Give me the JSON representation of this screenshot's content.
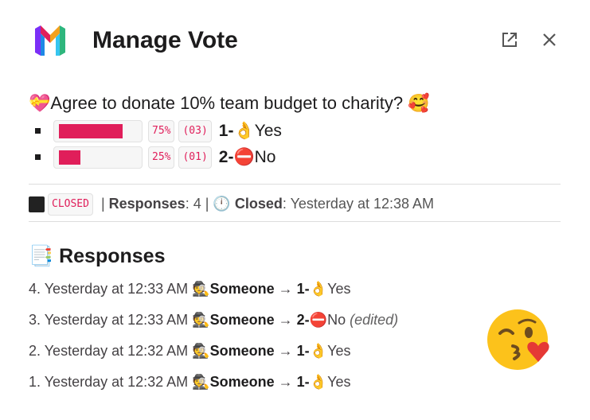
{
  "header": {
    "title": "Manage Vote",
    "logo_icon": "rainbow-m-logo",
    "external_icon": "open-external-icon",
    "close_icon": "close-icon"
  },
  "poll": {
    "question": "Agree to donate 10% team budget to charity?",
    "question_prefix_emoji": "💝",
    "question_suffix_emoji": "🥰",
    "accent": "#e01e5a",
    "options": [
      {
        "percent_text": "75%",
        "count_text": "(03)",
        "number": "1-",
        "emoji": "👌",
        "label": "Yes",
        "fraction": 0.75
      },
      {
        "percent_text": "25%",
        "count_text": "(01)",
        "number": "2-",
        "emoji": "⛔",
        "label": "No",
        "fraction": 0.25
      }
    ]
  },
  "status": {
    "state": "CLOSED",
    "responses_label": "Responses",
    "responses_value": "4",
    "closed_label": "Closed",
    "closed_value": "Yesterday at 12:38 AM",
    "clock_emoji": "🕛"
  },
  "responses": {
    "heading": "Responses",
    "heading_emoji": "📑",
    "items": [
      {
        "index": "4.",
        "time": "Yesterday at 12:33 AM",
        "who_emoji": "🕵",
        "who": "Someone",
        "arrow": "→",
        "number": "1-",
        "emoji": "👌",
        "label": "Yes",
        "note": ""
      },
      {
        "index": "3.",
        "time": "Yesterday at 12:33 AM",
        "who_emoji": "🕵",
        "who": "Someone",
        "arrow": "→",
        "number": "2-",
        "emoji": "⛔",
        "label": "No",
        "note": "(edited)"
      },
      {
        "index": "2.",
        "time": "Yesterday at 12:32 AM",
        "who_emoji": "🕵",
        "who": "Someone",
        "arrow": "→",
        "number": "1-",
        "emoji": "👌",
        "label": "Yes",
        "note": ""
      },
      {
        "index": "1.",
        "time": "Yesterday at 12:32 AM",
        "who_emoji": "🕵",
        "who": "Someone",
        "arrow": "→",
        "number": "1-",
        "emoji": "👌",
        "label": "Yes",
        "note": ""
      }
    ]
  },
  "decor": {
    "big_emoji": "kissing-heart-face-icon"
  }
}
